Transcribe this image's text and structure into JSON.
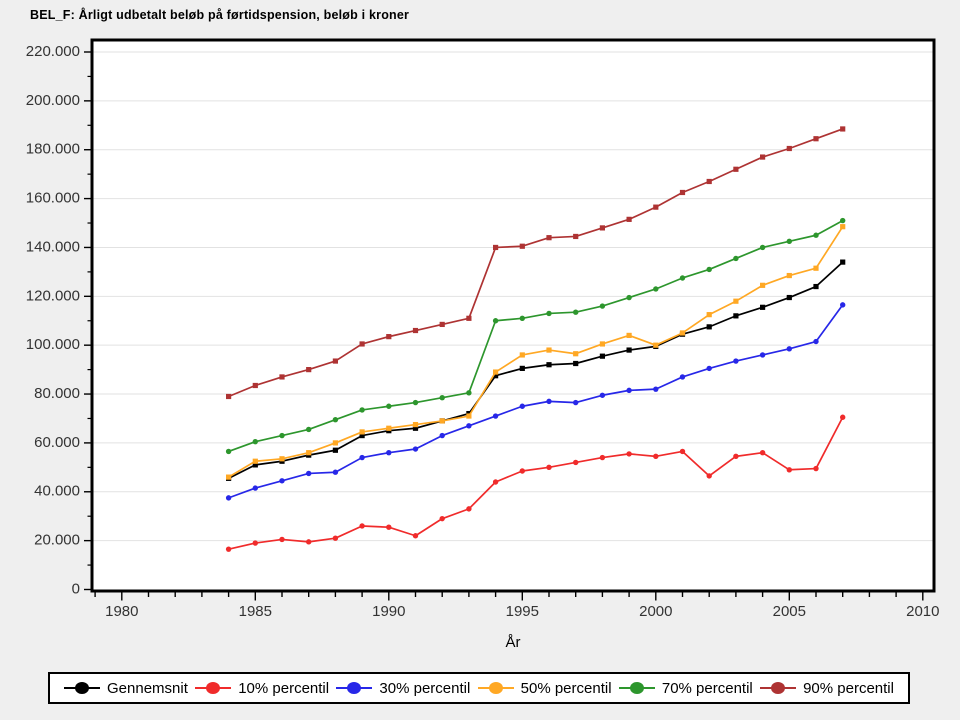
{
  "title": "BEL_F: Årligt udbetalt beløb på førtidspension, beløb i kroner",
  "chart_data": {
    "type": "line",
    "title": "BEL_F: Årligt udbetalt beløb på førtidspension, beløb i kroner",
    "xlabel": "År",
    "ylabel": "",
    "grid": "horizontal-major",
    "legend_position": "bottom",
    "x_axis": {
      "min": 1978.9,
      "max": 2010.5,
      "major_ticks": [
        1980,
        1985,
        1990,
        1995,
        2000,
        2005,
        2010
      ],
      "minor_tick_every": 1
    },
    "y_axis": {
      "min": 0,
      "max": 224000,
      "major_tick_every": 20000,
      "minor_tick_every": 10000,
      "major_tick_labels": [
        "0",
        "20.000",
        "40.000",
        "60.000",
        "80.000",
        "100.000",
        "120.000",
        "140.000",
        "160.000",
        "180.000",
        "200.000",
        "220.000"
      ]
    },
    "x": [
      1984,
      1985,
      1986,
      1987,
      1988,
      1989,
      1990,
      1991,
      1992,
      1993,
      1994,
      1995,
      1996,
      1997,
      1998,
      1999,
      2000,
      2001,
      2002,
      2003,
      2004,
      2005,
      2006,
      2007
    ],
    "series": [
      {
        "name": "Gennemsnit",
        "color": "#000000",
        "marker": "square",
        "values": [
          45500,
          51000,
          52500,
          55000,
          57000,
          63000,
          65000,
          66000,
          69000,
          72000,
          87500,
          90500,
          92000,
          92500,
          95500,
          98000,
          99500,
          104500,
          107500,
          112000,
          115500,
          119500,
          124000,
          134000
        ]
      },
      {
        "name": "10% percentil",
        "color": "#f02b2b",
        "marker": "circle",
        "values": [
          16500,
          19000,
          20500,
          19500,
          21000,
          26000,
          25500,
          22000,
          29000,
          33000,
          44000,
          48500,
          50000,
          52000,
          54000,
          55500,
          54500,
          56500,
          46500,
          54500,
          56000,
          49000,
          49500,
          70500
        ]
      },
      {
        "name": "30% percentil",
        "color": "#2727e8",
        "marker": "circle",
        "values": [
          37500,
          41500,
          44500,
          47500,
          48000,
          54000,
          56000,
          57500,
          63000,
          67000,
          71000,
          75000,
          77000,
          76500,
          79500,
          81500,
          82000,
          87000,
          90500,
          93500,
          96000,
          98500,
          101500,
          116500
        ]
      },
      {
        "name": "50% percentil",
        "color": "#ffa824",
        "marker": "square",
        "values": [
          46000,
          52500,
          53500,
          56000,
          60000,
          64500,
          66000,
          67500,
          69000,
          71000,
          89000,
          96000,
          98000,
          96500,
          100500,
          104000,
          100000,
          105000,
          112500,
          118000,
          124500,
          128500,
          131500,
          148500
        ]
      },
      {
        "name": "70% percentil",
        "color": "#2d962d",
        "marker": "circle",
        "values": [
          56500,
          60500,
          63000,
          65500,
          69500,
          73500,
          75000,
          76500,
          78500,
          80500,
          110000,
          111000,
          113000,
          113500,
          116000,
          119500,
          123000,
          127500,
          131000,
          135500,
          140000,
          142500,
          145000,
          151000
        ]
      },
      {
        "name": "90% percentil",
        "color": "#ae3333",
        "marker": "square",
        "values": [
          79000,
          83500,
          87000,
          90000,
          93500,
          100500,
          103500,
          106000,
          108500,
          111000,
          140000,
          140500,
          144000,
          144500,
          148000,
          151500,
          156500,
          162500,
          167000,
          172000,
          177000,
          180500,
          184500,
          188500
        ]
      }
    ]
  },
  "colors": {
    "page_background": "#efefef",
    "plot_background": "#ffffff",
    "frame": "#000000",
    "gridline": "#e2e2e2",
    "tick_text": "#333333"
  }
}
